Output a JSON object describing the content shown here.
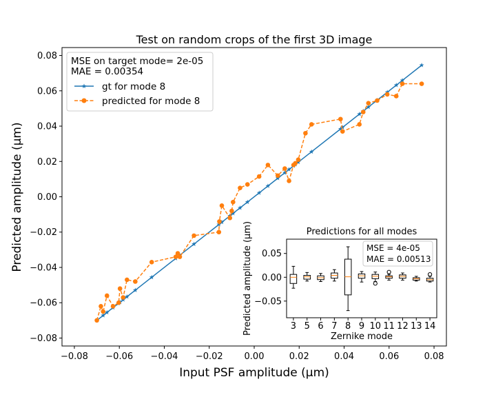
{
  "chart_data": [
    {
      "type": "line",
      "title": "Test on random crops of the first 3D image",
      "xlabel": "Input PSF amplitude (μm)",
      "ylabel": "Predicted amplitude (μm)",
      "xlim": [
        -0.0855,
        0.0855
      ],
      "ylim": [
        -0.0845,
        0.0845
      ],
      "xticks": [
        -0.08,
        -0.06,
        -0.04,
        -0.02,
        0.0,
        0.02,
        0.04,
        0.06,
        0.08
      ],
      "xtick_labels": [
        "−0.08",
        "−0.06",
        "−0.04",
        "−0.02",
        "0.00",
        "0.02",
        "0.04",
        "0.06",
        "0.08"
      ],
      "yticks": [
        -0.08,
        -0.06,
        -0.04,
        -0.02,
        0.0,
        0.02,
        0.04,
        0.06,
        0.08
      ],
      "ytick_labels": [
        "−0.08",
        "−0.06",
        "−0.04",
        "−0.02",
        "0.00",
        "0.02",
        "0.04",
        "0.06",
        "0.08"
      ],
      "grid": false,
      "legend_position": "top-left",
      "legend_text": [
        "MSE on target mode= 2e-05",
        "MAE = 0.00354"
      ],
      "series": [
        {
          "name": "gt for mode 8",
          "color": "#1f77b4",
          "marker": "star",
          "linestyle": "solid",
          "x": [
            -0.07,
            -0.0672,
            -0.0655,
            -0.0628,
            -0.0603,
            -0.0597,
            -0.0583,
            -0.0566,
            -0.0529,
            -0.0456,
            -0.0349,
            -0.0331,
            -0.0268,
            -0.0157,
            -0.0144,
            -0.0108,
            -0.0094,
            -0.0063,
            -0.003,
            0.0022,
            0.0061,
            0.0105,
            0.0136,
            0.0155,
            0.0175,
            0.0183,
            0.0196,
            0.0255,
            0.0384,
            0.0393,
            0.0468,
            0.0485,
            0.0508,
            0.0547,
            0.0592,
            0.0632,
            0.0659,
            0.0745
          ],
          "y": [
            -0.07,
            -0.0672,
            -0.0655,
            -0.0628,
            -0.0603,
            -0.0597,
            -0.0583,
            -0.0566,
            -0.0529,
            -0.0456,
            -0.0349,
            -0.0331,
            -0.0268,
            -0.0157,
            -0.0144,
            -0.0108,
            -0.0094,
            -0.0063,
            -0.003,
            0.0022,
            0.0061,
            0.0105,
            0.0136,
            0.0155,
            0.0175,
            0.0183,
            0.0196,
            0.0255,
            0.0384,
            0.0393,
            0.0468,
            0.0485,
            0.0508,
            0.0547,
            0.0592,
            0.0632,
            0.0659,
            0.0745
          ]
        },
        {
          "name": "predicted for mode 8",
          "color": "#ff7f0e",
          "marker": "circle",
          "linestyle": "dashed",
          "x": [
            -0.07,
            -0.0682,
            -0.0672,
            -0.0655,
            -0.0628,
            -0.0603,
            -0.0597,
            -0.0583,
            -0.0566,
            -0.0529,
            -0.0456,
            -0.0349,
            -0.034,
            -0.0331,
            -0.0268,
            -0.0157,
            -0.0155,
            -0.0144,
            -0.0108,
            -0.01,
            -0.0094,
            -0.0063,
            -0.003,
            0.0022,
            0.0061,
            0.0105,
            0.0136,
            0.0155,
            0.0175,
            0.0183,
            0.0196,
            0.0228,
            0.0255,
            0.0384,
            0.0393,
            0.0468,
            0.0485,
            0.0508,
            0.0547,
            0.0592,
            0.0632,
            0.0659,
            0.0745
          ],
          "y": [
            -0.07,
            -0.062,
            -0.065,
            -0.056,
            -0.062,
            -0.06,
            -0.052,
            -0.057,
            -0.047,
            -0.048,
            -0.037,
            -0.034,
            -0.032,
            -0.034,
            -0.022,
            -0.02,
            -0.014,
            -0.005,
            -0.012,
            -0.008,
            -0.003,
            0.005,
            0.007,
            0.0115,
            0.018,
            0.012,
            0.016,
            0.009,
            0.018,
            0.019,
            0.021,
            0.036,
            0.041,
            0.044,
            0.037,
            0.041,
            0.048,
            0.053,
            0.0545,
            0.058,
            0.057,
            0.064,
            0.064
          ]
        }
      ]
    },
    {
      "type": "box",
      "title": "Predictions for all modes",
      "xlabel": "Zernike mode",
      "ylabel": "Predicted amplitude (μm)",
      "ylim": [
        -0.085,
        0.08
      ],
      "yticks": [
        0.05,
        0.0,
        -0.05
      ],
      "ytick_labels": [
        "0.05",
        "0.00",
        "−0.05"
      ],
      "annotation": [
        "MSE = 4e-05",
        "MAE = 0.00513"
      ],
      "categories": [
        "3",
        "5",
        "6",
        "7",
        "8",
        "9",
        "10",
        "11",
        "12",
        "13",
        "14"
      ],
      "boxes": [
        {
          "whislo": -0.023,
          "q1": -0.013,
          "med": 0.0,
          "q3": 0.006,
          "whishi": 0.023,
          "fliers": []
        },
        {
          "whislo": -0.008,
          "q1": -0.004,
          "med": 0.001,
          "q3": 0.004,
          "whishi": 0.01,
          "fliers": []
        },
        {
          "whislo": -0.009,
          "q1": -0.005,
          "med": -0.001,
          "q3": 0.003,
          "whishi": 0.008,
          "fliers": []
        },
        {
          "whislo": -0.008,
          "q1": -0.002,
          "med": 0.004,
          "q3": 0.009,
          "whishi": 0.016,
          "fliers": []
        },
        {
          "whislo": -0.07,
          "q1": -0.037,
          "med": 0.001,
          "q3": 0.038,
          "whishi": 0.064,
          "fliers": []
        },
        {
          "whislo": -0.01,
          "q1": -0.002,
          "med": 0.003,
          "q3": 0.007,
          "whishi": 0.012,
          "fliers": []
        },
        {
          "whislo": -0.009,
          "q1": -0.003,
          "med": 0.002,
          "q3": 0.006,
          "whishi": 0.011,
          "fliers": [
            -0.013
          ]
        },
        {
          "whislo": -0.006,
          "q1": -0.002,
          "med": 0.001,
          "q3": 0.003,
          "whishi": 0.006,
          "fliers": [
            0.011
          ]
        },
        {
          "whislo": -0.006,
          "q1": -0.002,
          "med": 0.002,
          "q3": 0.005,
          "whishi": 0.009,
          "fliers": []
        },
        {
          "whislo": -0.008,
          "q1": -0.006,
          "med": -0.003,
          "q3": -0.001,
          "whishi": 0.002,
          "fliers": []
        },
        {
          "whislo": -0.01,
          "q1": -0.008,
          "med": -0.005,
          "q3": -0.002,
          "whishi": 0.002,
          "fliers": [
            0.006
          ]
        }
      ]
    }
  ]
}
